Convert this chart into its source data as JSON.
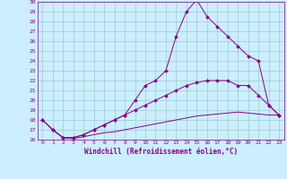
{
  "xlabel": "Windchill (Refroidissement éolien,°C)",
  "background_color": "#cceeff",
  "line_color": "#880088",
  "grid_color": "#99cccc",
  "xlim": [
    -0.5,
    23.5
  ],
  "ylim": [
    16,
    30
  ],
  "yticks": [
    16,
    17,
    18,
    19,
    20,
    21,
    22,
    23,
    24,
    25,
    26,
    27,
    28,
    29,
    30
  ],
  "xticks": [
    0,
    1,
    2,
    3,
    4,
    5,
    6,
    7,
    8,
    9,
    10,
    11,
    12,
    13,
    14,
    15,
    16,
    17,
    18,
    19,
    20,
    21,
    22,
    23
  ],
  "series": [
    {
      "x": [
        0,
        1,
        2,
        3,
        4,
        5,
        6,
        7,
        8,
        9,
        10,
        11,
        12,
        13,
        14,
        15,
        16,
        17,
        18,
        19,
        20,
        21,
        22,
        23
      ],
      "y": [
        18.0,
        17.0,
        16.2,
        16.1,
        16.3,
        16.5,
        16.7,
        16.8,
        17.0,
        17.2,
        17.4,
        17.6,
        17.8,
        18.0,
        18.2,
        18.4,
        18.5,
        18.6,
        18.7,
        18.8,
        18.7,
        18.6,
        18.5,
        18.5
      ],
      "marker": false
    },
    {
      "x": [
        0,
        1,
        2,
        3,
        4,
        5,
        6,
        7,
        8,
        9,
        10,
        11,
        12,
        13,
        14,
        15,
        16,
        17,
        18,
        19,
        20,
        21,
        22,
        23
      ],
      "y": [
        18.0,
        17.0,
        16.2,
        16.2,
        16.5,
        17.0,
        17.5,
        18.0,
        18.5,
        19.0,
        19.5,
        20.0,
        20.5,
        21.0,
        21.5,
        21.8,
        22.0,
        22.0,
        22.0,
        21.5,
        21.5,
        20.5,
        19.5,
        18.5
      ],
      "marker": true
    },
    {
      "x": [
        0,
        1,
        2,
        3,
        4,
        5,
        6,
        7,
        8,
        9,
        10,
        11,
        12,
        13,
        14,
        15,
        16,
        17,
        18,
        19,
        20,
        21,
        22,
        23
      ],
      "y": [
        18.0,
        17.0,
        16.2,
        16.2,
        16.5,
        17.0,
        17.5,
        18.0,
        18.5,
        20.0,
        21.5,
        22.0,
        23.0,
        26.5,
        29.0,
        30.2,
        28.5,
        27.5,
        26.5,
        25.5,
        24.5,
        24.0,
        19.5,
        18.5
      ],
      "marker": true
    }
  ]
}
